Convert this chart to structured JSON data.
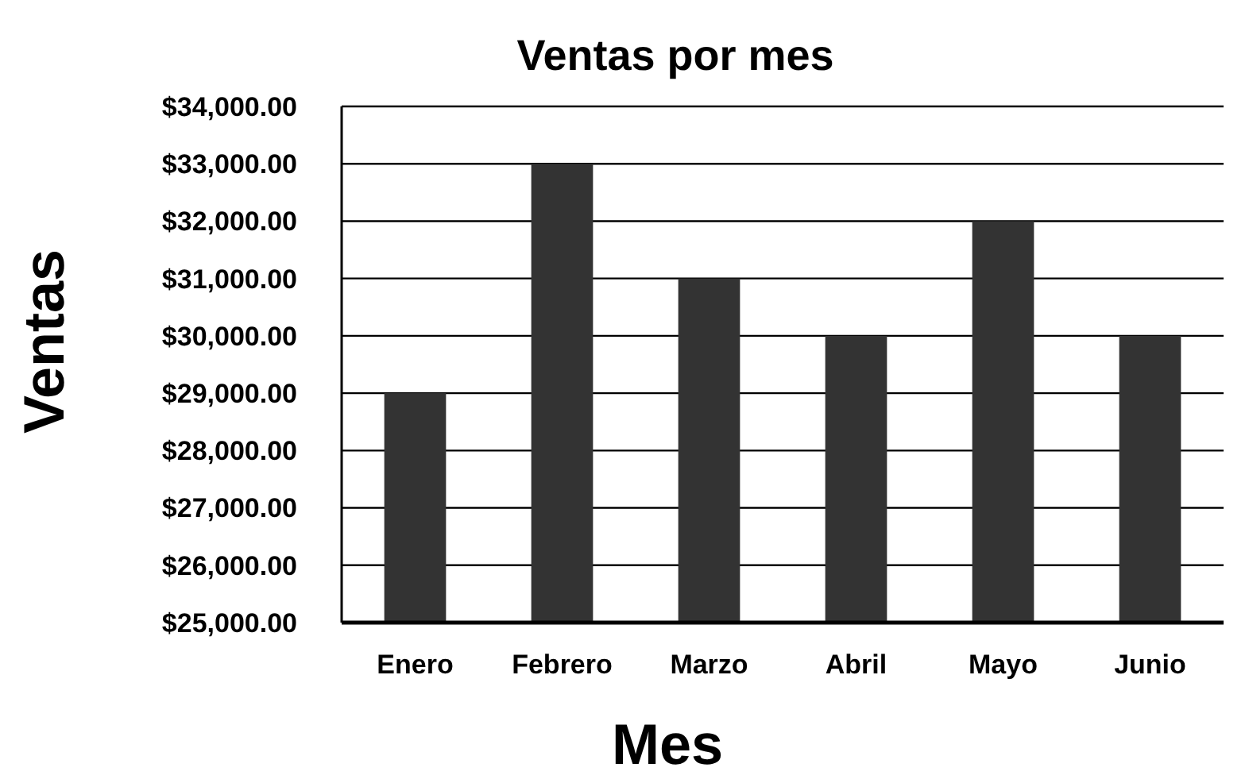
{
  "chart_data": {
    "type": "bar",
    "title": "Ventas por mes",
    "xlabel": "Mes",
    "ylabel": "Ventas",
    "categories": [
      "Enero",
      "Febrero",
      "Marzo",
      "Abril",
      "Mayo",
      "Junio"
    ],
    "values": [
      29000,
      33000,
      31000,
      30000,
      32000,
      30000
    ],
    "color": "#333333",
    "ylim": [
      25000,
      34000
    ],
    "yticks": [
      {
        "value": 25000,
        "label": "$25,000.00"
      },
      {
        "value": 26000,
        "label": "$26,000.00"
      },
      {
        "value": 27000,
        "label": "$27,000.00"
      },
      {
        "value": 28000,
        "label": "$28,000.00"
      },
      {
        "value": 29000,
        "label": "$29,000.00"
      },
      {
        "value": 30000,
        "label": "$30,000.00"
      },
      {
        "value": 31000,
        "label": "$31,000.00"
      },
      {
        "value": 32000,
        "label": "$32,000.00"
      },
      {
        "value": 33000,
        "label": "$33,000.00"
      },
      {
        "value": 34000,
        "label": "$34,000.00"
      }
    ],
    "grid": "y"
  }
}
